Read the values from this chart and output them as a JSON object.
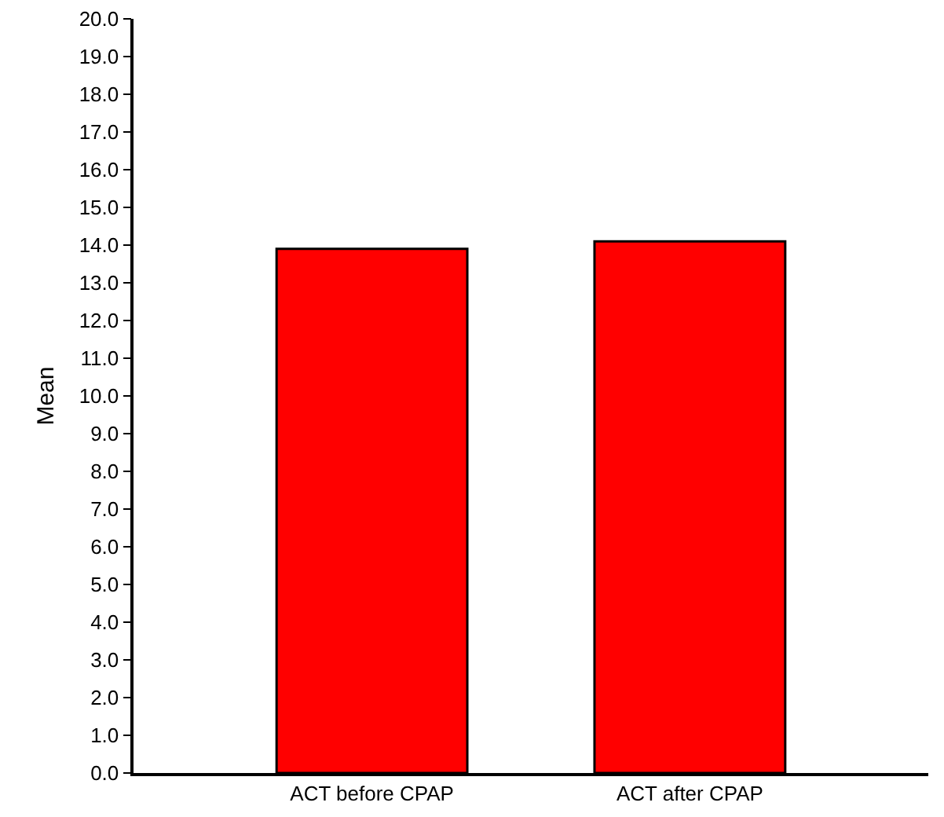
{
  "chart_data": {
    "type": "bar",
    "ylabel": "Mean",
    "categories": [
      "ACT before CPAP",
      "ACT after CPAP"
    ],
    "values": [
      13.9,
      14.1
    ],
    "color": "#ff0000",
    "ylim": [
      0,
      20
    ],
    "yticks": [
      {
        "value": 0,
        "label": "0.0"
      },
      {
        "value": 1,
        "label": "1.0"
      },
      {
        "value": 2,
        "label": "2.0"
      },
      {
        "value": 3,
        "label": "3.0"
      },
      {
        "value": 4,
        "label": "4.0"
      },
      {
        "value": 5,
        "label": "5.0"
      },
      {
        "value": 6,
        "label": "6.0"
      },
      {
        "value": 7,
        "label": "7.0"
      },
      {
        "value": 8,
        "label": "8.0"
      },
      {
        "value": 9,
        "label": "9.0"
      },
      {
        "value": 10,
        "label": "10.0"
      },
      {
        "value": 11,
        "label": "11.0"
      },
      {
        "value": 12,
        "label": "12.0"
      },
      {
        "value": 13,
        "label": "13.0"
      },
      {
        "value": 14,
        "label": "14.0"
      },
      {
        "value": 15,
        "label": "15.0"
      },
      {
        "value": 16,
        "label": "16.0"
      },
      {
        "value": 17,
        "label": "17.0"
      },
      {
        "value": 18,
        "label": "18.0"
      },
      {
        "value": 19,
        "label": "19.0"
      },
      {
        "value": 20,
        "label": "20.0"
      }
    ],
    "grid": false
  }
}
